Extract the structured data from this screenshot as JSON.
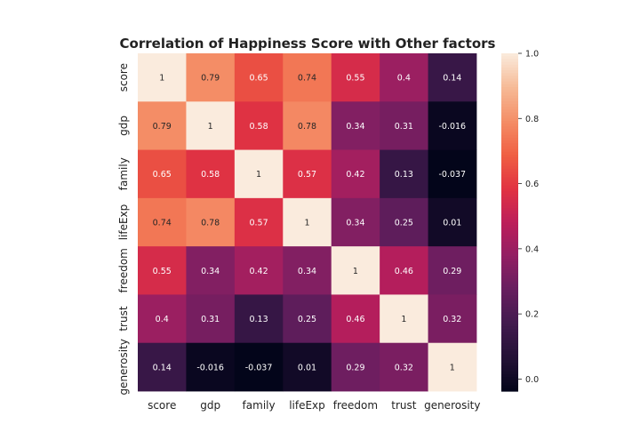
{
  "chart_data": {
    "type": "heatmap",
    "title": "Correlation of Happiness Score with Other factors",
    "rows": [
      "score",
      "gdp",
      "family",
      "lifeExp",
      "freedom",
      "trust",
      "generosity"
    ],
    "columns": [
      "score",
      "gdp",
      "family",
      "lifeExp",
      "freedom",
      "trust",
      "generosity"
    ],
    "values": [
      [
        1,
        0.79,
        0.65,
        0.74,
        0.55,
        0.4,
        0.14
      ],
      [
        0.79,
        1,
        0.58,
        0.78,
        0.34,
        0.31,
        -0.016
      ],
      [
        0.65,
        0.58,
        1,
        0.57,
        0.42,
        0.13,
        -0.037
      ],
      [
        0.74,
        0.78,
        0.57,
        1,
        0.34,
        0.25,
        0.01
      ],
      [
        0.55,
        0.34,
        0.42,
        0.34,
        1,
        0.46,
        0.29
      ],
      [
        0.4,
        0.31,
        0.13,
        0.25,
        0.46,
        1,
        0.32
      ],
      [
        0.14,
        -0.016,
        -0.037,
        0.01,
        0.29,
        0.32,
        1
      ]
    ],
    "labels": [
      [
        "1",
        "0.79",
        "0.65",
        "0.74",
        "0.55",
        "0.4",
        "0.14"
      ],
      [
        "0.79",
        "1",
        "0.58",
        "0.78",
        "0.34",
        "0.31",
        "-0.016"
      ],
      [
        "0.65",
        "0.58",
        "1",
        "0.57",
        "0.42",
        "0.13",
        "-0.037"
      ],
      [
        "0.74",
        "0.78",
        "0.57",
        "1",
        "0.34",
        "0.25",
        "0.01"
      ],
      [
        "0.55",
        "0.34",
        "0.42",
        "0.34",
        "1",
        "0.46",
        "0.29"
      ],
      [
        "0.4",
        "0.31",
        "0.13",
        "0.25",
        "0.46",
        "1",
        "0.32"
      ],
      [
        "0.14",
        "-0.016",
        "-0.037",
        "0.01",
        "0.29",
        "0.32",
        "1"
      ]
    ],
    "colormap": "rocket",
    "vmin": -0.037,
    "vmax": 1,
    "colorbar": {
      "ticks": [
        0.0,
        0.2,
        0.4,
        0.6,
        0.8,
        1.0
      ],
      "tick_labels": [
        "0.0",
        "0.2",
        "0.4",
        "0.6",
        "0.8",
        "1.0"
      ],
      "placement": "right"
    }
  }
}
